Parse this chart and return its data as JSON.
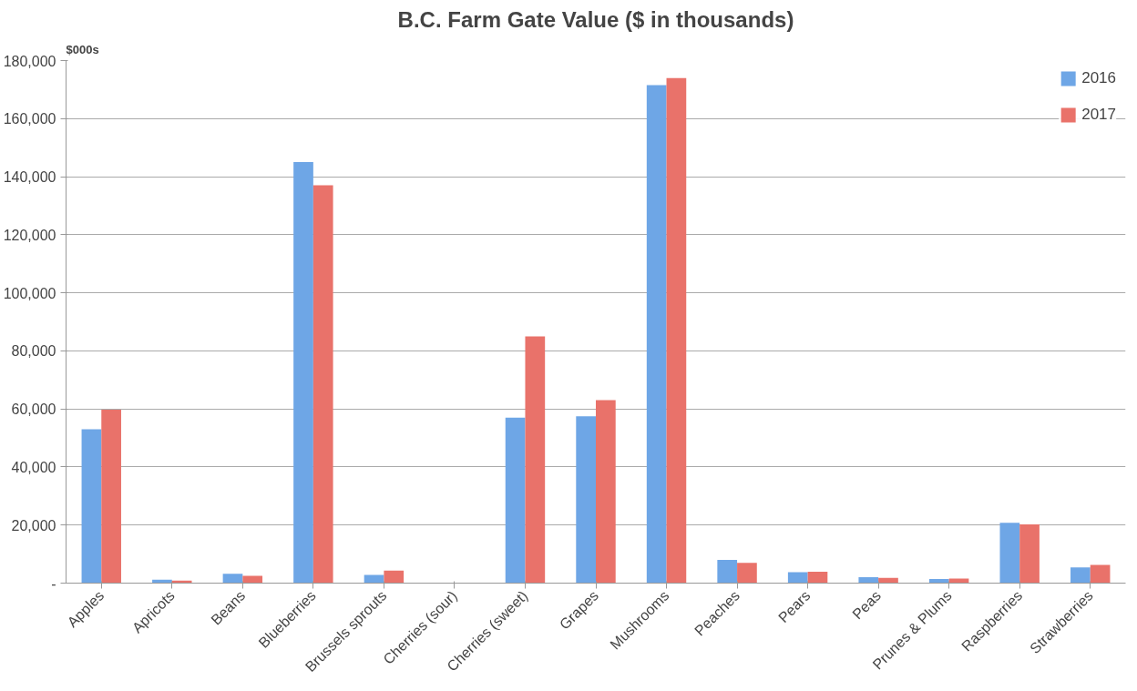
{
  "chart_data": {
    "type": "bar",
    "title": "B.C. Farm Gate Value ($ in thousands)",
    "ylabel": "$000s",
    "categories": [
      "Apples",
      "Apricots",
      "Beans",
      "Blueberries",
      "Brussels sprouts",
      "Cherries (sour)",
      "Cherries (sweet)",
      "Grapes",
      "Mushrooms",
      "Peaches",
      "Pears",
      "Peas",
      "Prunes & Plums",
      "Raspberries",
      "Strawberries"
    ],
    "series": [
      {
        "name": "2016",
        "color": "#6ea6e6",
        "values": [
          53000,
          1200,
          3200,
          145000,
          2800,
          null,
          57000,
          57500,
          171500,
          8000,
          3800,
          2000,
          1400,
          20800,
          5400
        ]
      },
      {
        "name": "2017",
        "color": "#e9726a",
        "values": [
          59700,
          900,
          2500,
          137000,
          4300,
          null,
          85000,
          63000,
          174000,
          7000,
          3900,
          1800,
          1600,
          20200,
          6300
        ]
      }
    ],
    "ylim": [
      0,
      180000
    ],
    "yticks": [
      {
        "value": 0,
        "label": "-"
      },
      {
        "value": 20000,
        "label": "20,000"
      },
      {
        "value": 40000,
        "label": "40,000"
      },
      {
        "value": 60000,
        "label": "60,000"
      },
      {
        "value": 80000,
        "label": "80,000"
      },
      {
        "value": 100000,
        "label": "100,000"
      },
      {
        "value": 120000,
        "label": "120,000"
      },
      {
        "value": 140000,
        "label": "140,000"
      },
      {
        "value": 160000,
        "label": "160,000"
      },
      {
        "value": 180000,
        "label": "180,000"
      }
    ],
    "grid": "y",
    "legend": "top right"
  }
}
